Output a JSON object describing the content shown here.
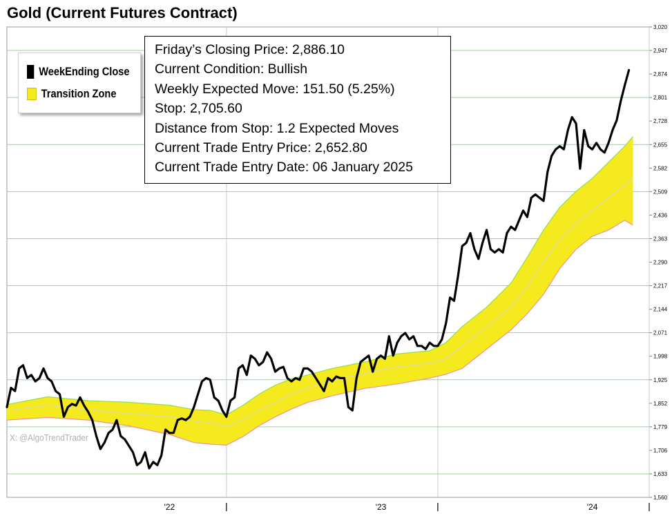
{
  "title": "Gold (Current Futures Contract)",
  "legend": {
    "items": [
      {
        "label": "WeekEnding Close",
        "color": "#000000"
      },
      {
        "label": "Transition Zone",
        "color": "#f5ea1e"
      }
    ],
    "placement": "top-left"
  },
  "info": [
    "Friday’s Closing Price: 2,886.10",
    "Current Condition: Bullish",
    "Weekly Expected Move: 151.50 (5.25%)",
    "Stop: 2,705.60",
    "Distance from Stop: 1.2 Expected Moves",
    "Current Trade Entry Price: 2,652.80",
    "Current Trade Entry Date: 06 January 2025"
  ],
  "watermark": "X: @AlgoTrendTrader",
  "colors": {
    "zone": "#f5ea1e",
    "line": "#000000",
    "grid": "#90d890",
    "upper_edge": "#8ede4a",
    "lower_edge": "#f090a0",
    "mid": "#e3de96"
  },
  "chart_data": {
    "type": "line",
    "ylim": [
      1560,
      3020
    ],
    "y_ticks": [
      "1,560",
      "1,633",
      "1,706",
      "1,779",
      "1,852",
      "1,925",
      "1,998",
      "2,071",
      "2,144",
      "2,217",
      "2,290",
      "2,363",
      "2,436",
      "2,509",
      "2,582",
      "2,655",
      "2,728",
      "2,801",
      "2,874",
      "2,947",
      "3,020"
    ],
    "x_ticks": [
      {
        "label": "'22",
        "x": 40
      },
      {
        "label": "'23",
        "x": 92
      },
      {
        "label": "'24",
        "x": 144
      }
    ],
    "year_dividers": [
      54,
      106,
      158
    ],
    "xlim": [
      0,
      158
    ],
    "series": [
      {
        "name": "WeekEnding Close",
        "points": [
          [
            0,
            1840
          ],
          [
            1,
            1900
          ],
          [
            2,
            1890
          ],
          [
            3,
            1960
          ],
          [
            4,
            1970
          ],
          [
            5,
            1930
          ],
          [
            6,
            1940
          ],
          [
            7,
            1920
          ],
          [
            8,
            1930
          ],
          [
            9,
            1960
          ],
          [
            10,
            1930
          ],
          [
            11,
            1920
          ],
          [
            12,
            1890
          ],
          [
            13,
            1880
          ],
          [
            14,
            1810
          ],
          [
            15,
            1840
          ],
          [
            16,
            1850
          ],
          [
            17,
            1845
          ],
          [
            18,
            1870
          ],
          [
            19,
            1845
          ],
          [
            20,
            1825
          ],
          [
            21,
            1800
          ],
          [
            22,
            1750
          ],
          [
            23,
            1710
          ],
          [
            24,
            1730
          ],
          [
            25,
            1760
          ],
          [
            26,
            1770
          ],
          [
            27,
            1800
          ],
          [
            28,
            1750
          ],
          [
            29,
            1740
          ],
          [
            30,
            1720
          ],
          [
            31,
            1700
          ],
          [
            32,
            1660
          ],
          [
            33,
            1670
          ],
          [
            34,
            1700
          ],
          [
            35,
            1650
          ],
          [
            36,
            1670
          ],
          [
            37,
            1660
          ],
          [
            38,
            1690
          ],
          [
            39,
            1770
          ],
          [
            40,
            1760
          ],
          [
            41,
            1760
          ],
          [
            42,
            1800
          ],
          [
            43,
            1805
          ],
          [
            44,
            1800
          ],
          [
            45,
            1810
          ],
          [
            46,
            1840
          ],
          [
            47,
            1880
          ],
          [
            48,
            1920
          ],
          [
            49,
            1930
          ],
          [
            50,
            1925
          ],
          [
            51,
            1870
          ],
          [
            52,
            1860
          ],
          [
            53,
            1830
          ],
          [
            54,
            1810
          ],
          [
            55,
            1860
          ],
          [
            56,
            1870
          ],
          [
            57,
            1960
          ],
          [
            58,
            1970
          ],
          [
            59,
            1940
          ],
          [
            60,
            2000
          ],
          [
            61,
            1990
          ],
          [
            62,
            1970
          ],
          [
            63,
            1980
          ],
          [
            64,
            2010
          ],
          [
            65,
            1990
          ],
          [
            66,
            1950
          ],
          [
            67,
            1960
          ],
          [
            68,
            1965
          ],
          [
            69,
            1930
          ],
          [
            70,
            1920
          ],
          [
            71,
            1930
          ],
          [
            72,
            1925
          ],
          [
            73,
            1960
          ],
          [
            74,
            1960
          ],
          [
            75,
            1950
          ],
          [
            76,
            1930
          ],
          [
            77,
            1910
          ],
          [
            78,
            1890
          ],
          [
            79,
            1930
          ],
          [
            80,
            1920
          ],
          [
            81,
            1935
          ],
          [
            82,
            1930
          ],
          [
            83,
            1930
          ],
          [
            84,
            1840
          ],
          [
            85,
            1830
          ],
          [
            86,
            1930
          ],
          [
            87,
            1980
          ],
          [
            88,
            1990
          ],
          [
            89,
            2000
          ],
          [
            90,
            1950
          ],
          [
            91,
            1990
          ],
          [
            92,
            2000
          ],
          [
            93,
            1990
          ],
          [
            94,
            2060
          ],
          [
            95,
            2000
          ],
          [
            96,
            2040
          ],
          [
            97,
            2060
          ],
          [
            98,
            2070
          ],
          [
            99,
            2050
          ],
          [
            100,
            2060
          ],
          [
            101,
            2030
          ],
          [
            102,
            2030
          ],
          [
            103,
            2020
          ],
          [
            104,
            2040
          ],
          [
            105,
            2030
          ],
          [
            106,
            2030
          ],
          [
            107,
            2050
          ],
          [
            108,
            2100
          ],
          [
            109,
            2180
          ],
          [
            110,
            2170
          ],
          [
            111,
            2250
          ],
          [
            112,
            2340
          ],
          [
            113,
            2350
          ],
          [
            114,
            2380
          ],
          [
            115,
            2330
          ],
          [
            116,
            2300
          ],
          [
            117,
            2350
          ],
          [
            118,
            2390
          ],
          [
            119,
            2330
          ],
          [
            120,
            2320
          ],
          [
            121,
            2330
          ],
          [
            122,
            2320
          ],
          [
            123,
            2380
          ],
          [
            124,
            2400
          ],
          [
            125,
            2390
          ],
          [
            126,
            2420
          ],
          [
            127,
            2450
          ],
          [
            128,
            2430
          ],
          [
            129,
            2490
          ],
          [
            130,
            2500
          ],
          [
            131,
            2490
          ],
          [
            132,
            2480
          ],
          [
            133,
            2570
          ],
          [
            134,
            2620
          ],
          [
            135,
            2640
          ],
          [
            136,
            2650
          ],
          [
            137,
            2640
          ],
          [
            138,
            2700
          ],
          [
            139,
            2740
          ],
          [
            140,
            2720
          ],
          [
            141,
            2580
          ],
          [
            142,
            2700
          ],
          [
            143,
            2650
          ],
          [
            144,
            2640
          ],
          [
            145,
            2660
          ],
          [
            146,
            2640
          ],
          [
            147,
            2630
          ],
          [
            148,
            2660
          ],
          [
            149,
            2700
          ],
          [
            150,
            2730
          ],
          [
            151,
            2790
          ],
          [
            152,
            2840
          ],
          [
            153,
            2886
          ]
        ]
      },
      {
        "name": "Transition Zone upper",
        "points": [
          [
            0,
            1848
          ],
          [
            10,
            1872
          ],
          [
            20,
            1860
          ],
          [
            30,
            1855
          ],
          [
            40,
            1846
          ],
          [
            46,
            1832
          ],
          [
            50,
            1830
          ],
          [
            54,
            1816
          ],
          [
            58,
            1845
          ],
          [
            62,
            1880
          ],
          [
            66,
            1908
          ],
          [
            70,
            1928
          ],
          [
            74,
            1940
          ],
          [
            80,
            1960
          ],
          [
            88,
            1980
          ],
          [
            96,
            2005
          ],
          [
            104,
            2015
          ],
          [
            108,
            2040
          ],
          [
            112,
            2090
          ],
          [
            118,
            2150
          ],
          [
            124,
            2225
          ],
          [
            128,
            2305
          ],
          [
            132,
            2390
          ],
          [
            136,
            2460
          ],
          [
            140,
            2510
          ],
          [
            144,
            2550
          ],
          [
            148,
            2600
          ],
          [
            152,
            2650
          ],
          [
            154,
            2680
          ]
        ]
      },
      {
        "name": "Transition Zone mid",
        "points": [
          [
            0,
            1830
          ],
          [
            10,
            1845
          ],
          [
            20,
            1832
          ],
          [
            30,
            1820
          ],
          [
            40,
            1810
          ],
          [
            46,
            1796
          ],
          [
            50,
            1790
          ],
          [
            54,
            1780
          ],
          [
            58,
            1800
          ],
          [
            62,
            1830
          ],
          [
            66,
            1855
          ],
          [
            70,
            1880
          ],
          [
            74,
            1900
          ],
          [
            80,
            1922
          ],
          [
            88,
            1945
          ],
          [
            96,
            1965
          ],
          [
            104,
            1975
          ],
          [
            108,
            1990
          ],
          [
            112,
            2030
          ],
          [
            118,
            2090
          ],
          [
            124,
            2150
          ],
          [
            128,
            2215
          ],
          [
            132,
            2290
          ],
          [
            136,
            2360
          ],
          [
            140,
            2410
          ],
          [
            144,
            2450
          ],
          [
            148,
            2490
          ],
          [
            152,
            2530
          ],
          [
            154,
            2555
          ]
        ]
      },
      {
        "name": "Transition Zone lower",
        "points": [
          [
            0,
            1800
          ],
          [
            10,
            1808
          ],
          [
            20,
            1800
          ],
          [
            30,
            1782
          ],
          [
            40,
            1755
          ],
          [
            46,
            1730
          ],
          [
            50,
            1725
          ],
          [
            54,
            1722
          ],
          [
            58,
            1748
          ],
          [
            62,
            1782
          ],
          [
            66,
            1810
          ],
          [
            70,
            1834
          ],
          [
            74,
            1855
          ],
          [
            80,
            1875
          ],
          [
            88,
            1898
          ],
          [
            96,
            1912
          ],
          [
            104,
            1930
          ],
          [
            108,
            1942
          ],
          [
            112,
            1960
          ],
          [
            118,
            2020
          ],
          [
            124,
            2080
          ],
          [
            128,
            2130
          ],
          [
            132,
            2190
          ],
          [
            136,
            2270
          ],
          [
            140,
            2330
          ],
          [
            144,
            2370
          ],
          [
            148,
            2390
          ],
          [
            152,
            2420
          ],
          [
            154,
            2405
          ]
        ]
      }
    ]
  }
}
